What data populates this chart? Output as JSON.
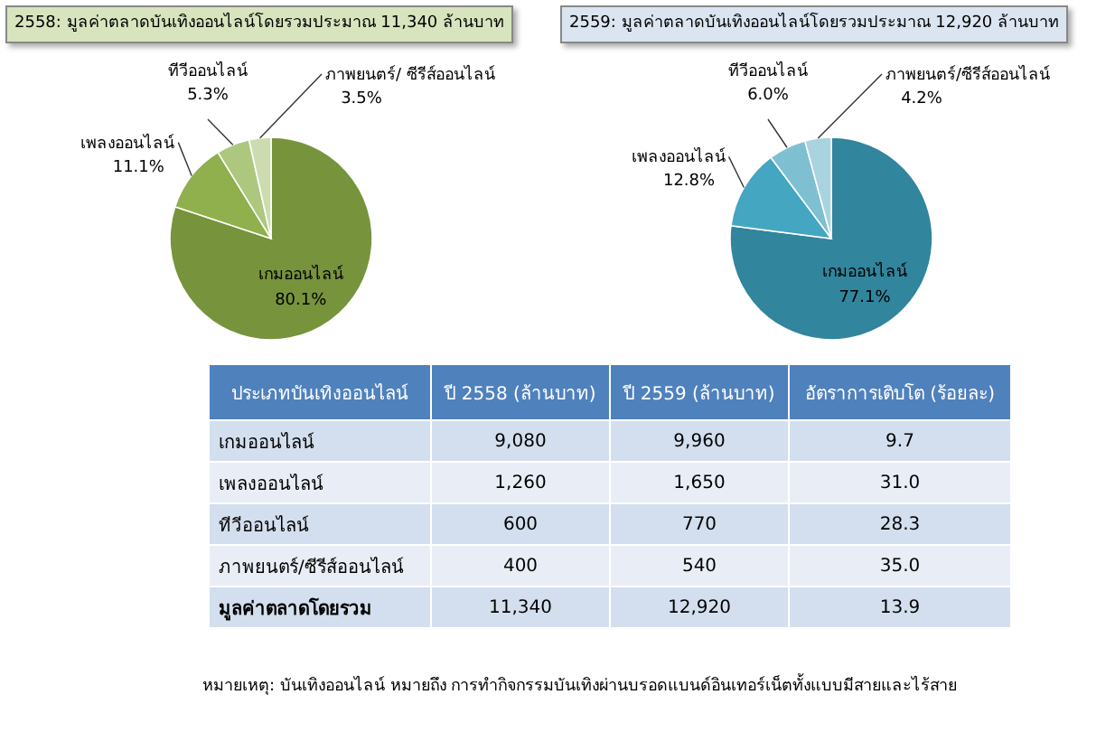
{
  "chart_data": [
    {
      "type": "pie",
      "title": "2558: มูลค่าตลาดบันเทิงออนไลน์โดยรวมประมาณ 11,340 ล้านบาท",
      "categories": [
        "เกมออนไลน์",
        "เพลงออนไลน์",
        "ทีวีออนไลน์",
        "ภาพยนตร์/ ซีรีส์ออนไลน์"
      ],
      "values": [
        80.1,
        11.1,
        5.3,
        3.5
      ],
      "value_labels": [
        "80.1%",
        "11.1%",
        "5.3%",
        "3.5%"
      ],
      "colors": [
        "#77933c",
        "#8fb04c",
        "#aec77e",
        "#cddcaf"
      ]
    },
    {
      "type": "pie",
      "title": "2559: มูลค่าตลาดบันเทิงออนไลน์โดยรวมประมาณ 12,920 ล้านบาท",
      "categories": [
        "เกมออนไลน์",
        "เพลงออนไลน์",
        "ทีวีออนไลน์",
        "ภาพยนตร์/ซีรีส์ออนไลน์"
      ],
      "values": [
        77.1,
        12.8,
        6.0,
        4.2
      ],
      "value_labels": [
        "77.1%",
        "12.8%",
        "6.0%",
        "4.2%"
      ],
      "colors": [
        "#31859c",
        "#44a6c0",
        "#7fbfd2",
        "#a9d3df"
      ]
    },
    {
      "type": "other",
      "xlabel": "ประเภทบันเทิงออนไลน์",
      "categories": [
        "เกมออนไลน์",
        "เพลงออนไลน์",
        "ทีวีออนไลน์",
        "ภาพยนตร์/ซีรีส์ออนไลน์",
        "มูลค่าตลาดโดยรวม"
      ],
      "series": [
        {
          "name": "ปี 2558 (ล้านบาท)",
          "values": [
            9080,
            1260,
            600,
            400,
            11340
          ],
          "value_labels": [
            "9,080",
            "1,260",
            "600",
            "400",
            "11,340"
          ],
          "colors": [
            "#d3dfee",
            "#e9eef6",
            "#d3dfee",
            "#e9eef6",
            "#d3dfee"
          ]
        },
        {
          "name": "ปี 2559 (ล้านบาท)",
          "values": [
            9960,
            1650,
            770,
            540,
            12920
          ],
          "value_labels": [
            "9,960",
            "1,650",
            "770",
            "540",
            "12,920"
          ],
          "colors": [
            "#d3dfee",
            "#e9eef6",
            "#d3dfee",
            "#e9eef6",
            "#d3dfee"
          ]
        },
        {
          "name": "อัตราการเติบโต (ร้อยละ)",
          "values": [
            9.7,
            31.0,
            28.3,
            35.0,
            13.9
          ],
          "value_labels": [
            "9.7",
            "31.0",
            "28.3",
            "35.0",
            "13.9"
          ],
          "colors": [
            "#d3dfee",
            "#e9eef6",
            "#d3dfee",
            "#e9eef6",
            "#d3dfee"
          ]
        }
      ],
      "annotations": [
        "หมายเหตุ: บันเทิงออนไลน์ หมายถึง การทำกิจกรรมบันเทิงผ่านบรอดแบนด์อินเทอร์เน็ตทั้งแบบมีสายและไร้สาย"
      ]
    }
  ]
}
